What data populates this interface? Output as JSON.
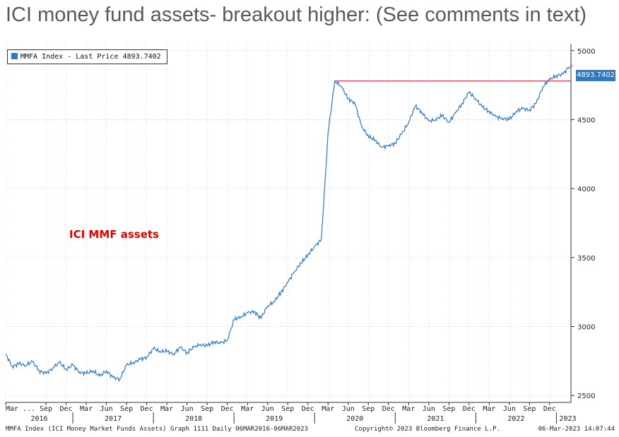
{
  "slide_title": "ICI money fund assets- breakout higher: (See comments in text)",
  "chart_data": {
    "type": "line",
    "title": "",
    "legend": {
      "label": "MMFA Index - Last Price",
      "value": "4893.7402",
      "placement": "top-left"
    },
    "annotation": "ICI MMF assets",
    "last_price_label": "4893.7402",
    "ylim": [
      2450,
      5050
    ],
    "y_ticks": [
      2500,
      3000,
      3500,
      4000,
      4500,
      5000
    ],
    "grid": true,
    "resistance_level": 4780,
    "month_ticks": [
      "Mar ...",
      "Sep",
      "Dec",
      "Mar",
      "Jun",
      "Sep",
      "Dec",
      "Mar",
      "Jun",
      "Sep",
      "Dec",
      "Mar",
      "Jun",
      "Sep",
      "Dec",
      "Mar",
      "Jun",
      "Sep",
      "Dec",
      "Mar",
      "Jun",
      "Sep",
      "Dec",
      "Mar",
      "Jun",
      "Sep",
      "Dec"
    ],
    "year_labels": [
      "2016",
      "2017",
      "2018",
      "2019",
      "2020",
      "2021",
      "2022",
      "2023"
    ],
    "series": [
      {
        "x": [
          "2016-03",
          "2016-04",
          "2016-05",
          "2016-06",
          "2016-07",
          "2016-08",
          "2016-09",
          "2016-10",
          "2016-11",
          "2016-12",
          "2017-01",
          "2017-02",
          "2017-03",
          "2017-04",
          "2017-05",
          "2017-06",
          "2017-07",
          "2017-08",
          "2017-09",
          "2017-10",
          "2017-11",
          "2017-12",
          "2018-01",
          "2018-02",
          "2018-03",
          "2018-04",
          "2018-05",
          "2018-06",
          "2018-07",
          "2018-08",
          "2018-09",
          "2018-10",
          "2018-11",
          "2018-12",
          "2019-01",
          "2019-02",
          "2019-03",
          "2019-04",
          "2019-05",
          "2019-06",
          "2019-07",
          "2019-08",
          "2019-09",
          "2019-10",
          "2019-11",
          "2019-12",
          "2020-01",
          "2020-02",
          "2020-03",
          "2020-04",
          "2020-05",
          "2020-06",
          "2020-07",
          "2020-08",
          "2020-09",
          "2020-10",
          "2020-11",
          "2020-12",
          "2021-01",
          "2021-02",
          "2021-03",
          "2021-04",
          "2021-05",
          "2021-06",
          "2021-07",
          "2021-08",
          "2021-09",
          "2021-10",
          "2021-11",
          "2021-12",
          "2022-01",
          "2022-02",
          "2022-03",
          "2022-04",
          "2022-05",
          "2022-06",
          "2022-07",
          "2022-08",
          "2022-09",
          "2022-10",
          "2022-11",
          "2022-12",
          "2023-01",
          "2023-02",
          "2023-03"
        ],
        "values": [
          2800,
          2710,
          2730,
          2720,
          2745,
          2680,
          2660,
          2700,
          2740,
          2690,
          2720,
          2670,
          2660,
          2680,
          2640,
          2680,
          2630,
          2620,
          2720,
          2740,
          2760,
          2780,
          2840,
          2820,
          2820,
          2800,
          2850,
          2810,
          2850,
          2870,
          2860,
          2890,
          2880,
          2900,
          3050,
          3070,
          3100,
          3110,
          3060,
          3150,
          3180,
          3250,
          3320,
          3400,
          3460,
          3520,
          3580,
          3630,
          4400,
          4780,
          4740,
          4650,
          4620,
          4450,
          4380,
          4350,
          4300,
          4310,
          4330,
          4400,
          4480,
          4600,
          4550,
          4490,
          4500,
          4530,
          4480,
          4550,
          4620,
          4700,
          4650,
          4590,
          4560,
          4520,
          4510,
          4500,
          4560,
          4580,
          4570,
          4620,
          4740,
          4790,
          4820,
          4830,
          4893.74
        ]
      }
    ]
  },
  "footer": {
    "description": "MMFA Index (ICI Money Market Funds Assets) Graph 1111  Daily 06MAR2016-06MAR2023",
    "copyright": "Copyright© 2023 Bloomberg Finance L.P.",
    "timestamp": "06-Mar-2023 14:07:44"
  }
}
